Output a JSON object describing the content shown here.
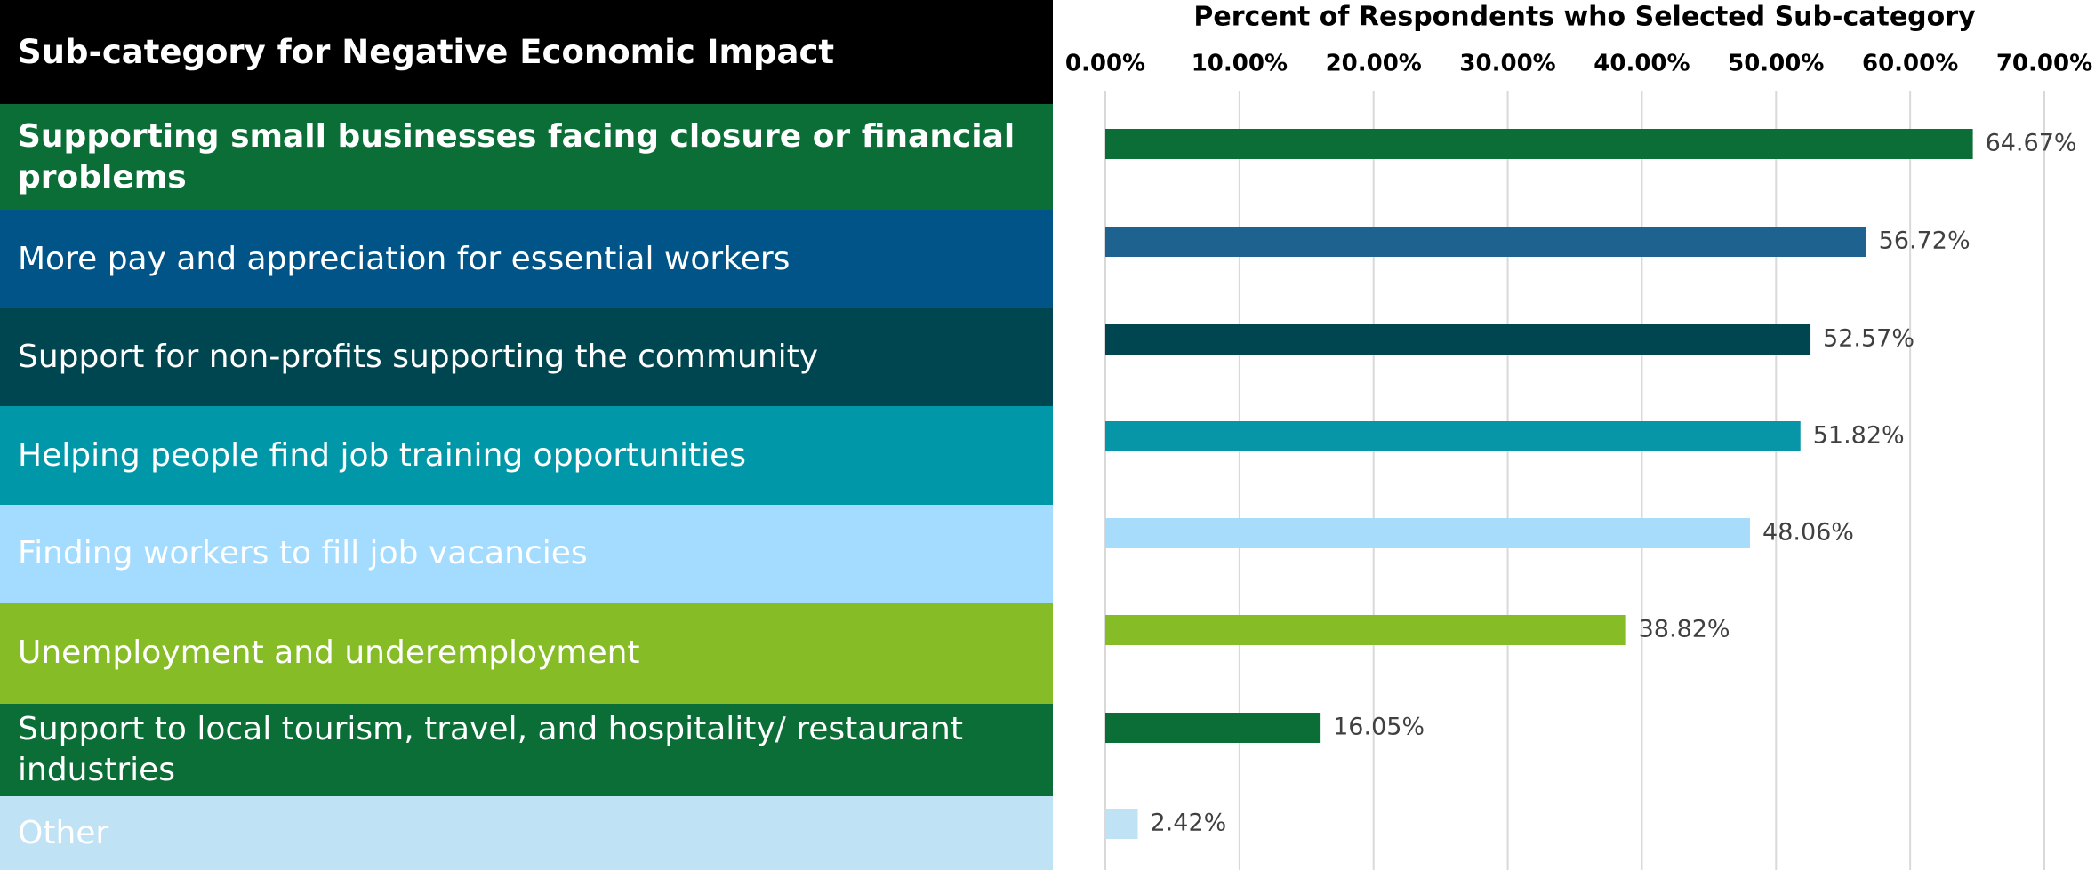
{
  "chart_data": {
    "type": "bar",
    "orientation": "horizontal",
    "title": "Sub-category for Negative Economic Impact",
    "x_label": "Percent of Respondents who Selected Sub-category",
    "categories": [
      "Supporting small businesses facing closure or financial problems",
      "More pay and appreciation for essential workers",
      "Support for non-profits supporting the community",
      "Helping people find job training opportunities",
      "Finding workers to fill job vacancies",
      "Unemployment and underemployment",
      "Support to local tourism, travel, and hospitality/ restaurant industries",
      "Other"
    ],
    "series": [
      {
        "values": [
          64.67,
          56.72,
          52.57,
          51.82,
          48.06,
          38.82,
          16.05,
          2.42
        ],
        "value_labels": [
          "64.67%",
          "56.72%",
          "52.57%",
          "51.82%",
          "48.06%",
          "38.82%",
          "16.05%",
          "2.42%"
        ],
        "colors": [
          "#0a6e36",
          "#1e6290",
          "#004651",
          "#0795a8",
          "#a8dcfb",
          "#86bc25",
          "#0a6e36",
          "#c0e2f5"
        ],
        "row_colors": [
          "#0a6e36",
          "#005487",
          "#004651",
          "#0098a9",
          "#a3dcff",
          "#86bc25",
          "#0a6e36",
          "#c0e2f5"
        ]
      }
    ],
    "xlim": [
      0,
      70
    ],
    "xticks": [
      {
        "value": 0,
        "label": "0.00%"
      },
      {
        "value": 10,
        "label": "10.00%"
      },
      {
        "value": 20,
        "label": "20.00%"
      },
      {
        "value": 30,
        "label": "30.00%"
      },
      {
        "value": 40,
        "label": "40.00%"
      },
      {
        "value": 50,
        "label": "50.00%"
      },
      {
        "value": 60,
        "label": "60.00%"
      },
      {
        "value": 70,
        "label": "70.00%"
      }
    ],
    "grid": true
  }
}
